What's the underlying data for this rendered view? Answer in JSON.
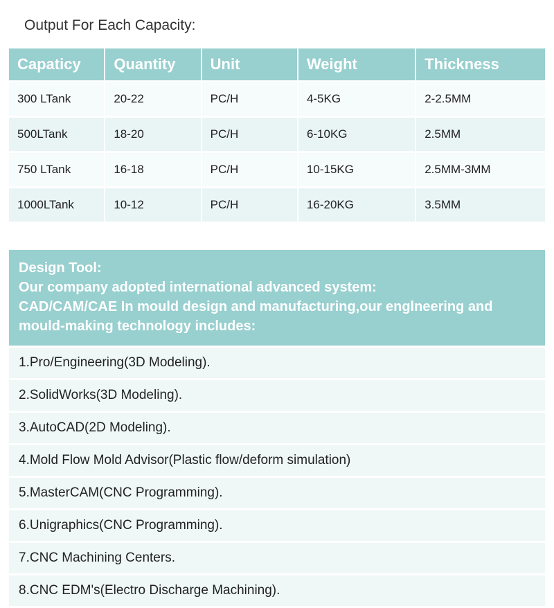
{
  "title": "Output For Each Capacity:",
  "capacity_table": {
    "type": "table",
    "header_bg": "#98cfcf",
    "header_color": "#ffffff",
    "row_light_bg": "#f6fbfb",
    "row_dark_bg": "#e9f4f4",
    "columns": [
      "Capaticy",
      "Quantity",
      "Unit",
      "Weight",
      "Thickness"
    ],
    "rows": [
      [
        "300 LTank",
        "20-22",
        "PC/H",
        "4-5KG",
        "2-2.5MM"
      ],
      [
        "500LTank",
        "18-20",
        "PC/H",
        "6-10KG",
        "2.5MM"
      ],
      [
        "750 LTank",
        "16-18",
        "PC/H",
        "10-15KG",
        "2.5MM-3MM"
      ],
      [
        "1000LTank",
        "10-12",
        "PC/H",
        "16-20KG",
        "3.5MM"
      ]
    ]
  },
  "design_tool": {
    "header_bg": "#98cfcf",
    "item_bg": "#eff7f7",
    "header_lines": [
      "Design Tool:",
      "Our company adopted international advanced system:",
      "CAD/CAM/CAE In mould design and manufacturing,our englneering and mould-making technology includes:"
    ],
    "items": [
      "1.Pro/Engineering(3D Modeling).",
      "2.SolidWorks(3D Modeling).",
      "3.AutoCAD(2D Modeling).",
      "4.Mold Flow Mold Advisor(Plastic flow/deform simulation)",
      "5.MasterCAM(CNC Programming).",
      "6.Unigraphics(CNC Programming).",
      "7.CNC Machining Centers.",
      "8.CNC EDM's(Electro Discharge Machining)."
    ]
  }
}
